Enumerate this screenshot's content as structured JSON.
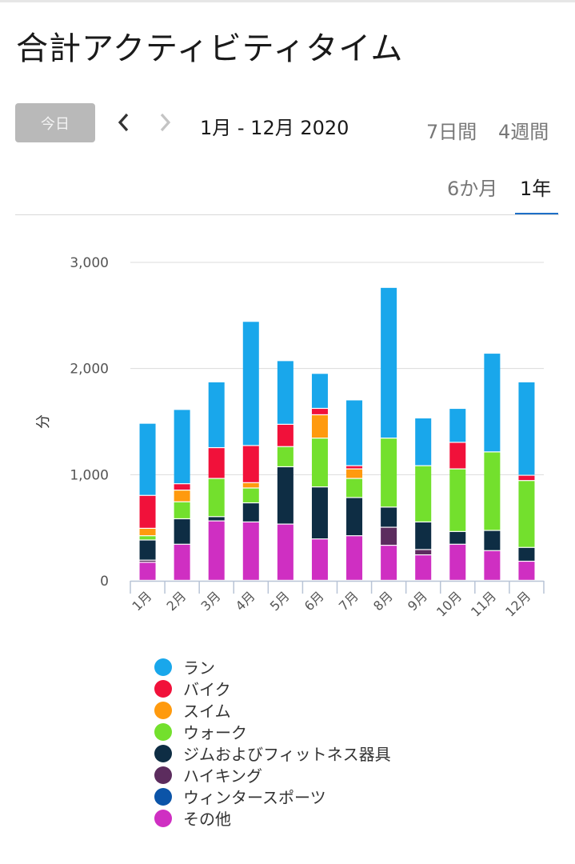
{
  "page": {
    "title": "合計アクティビティタイム"
  },
  "controls": {
    "today_label": "今日",
    "date_range": "1月 - 12月 2020",
    "tabs": [
      {
        "label": "7日間",
        "selected": false
      },
      {
        "label": "4週間",
        "selected": false
      },
      {
        "label": "6か月",
        "selected": false
      },
      {
        "label": "1年",
        "selected": true
      }
    ],
    "accent_color": "#1e6fc7"
  },
  "chart_data": {
    "type": "bar",
    "stacked": true,
    "ylabel": "分",
    "ylim": [
      0,
      3000
    ],
    "yticks": [
      0,
      1000,
      2000,
      3000
    ],
    "ytick_labels": [
      "0",
      "1,000",
      "2,000",
      "3,000"
    ],
    "grid": true,
    "legend_position": "bottom",
    "categories": [
      "1月",
      "2月",
      "3月",
      "4月",
      "5月",
      "6月",
      "7月",
      "8月",
      "9月",
      "10月",
      "11月",
      "12月"
    ],
    "series": [
      {
        "name": "その他",
        "color": "#cf2fc2",
        "values": [
          170,
          340,
          560,
          550,
          530,
          390,
          420,
          330,
          240,
          340,
          280,
          180
        ]
      },
      {
        "name": "ウィンタースポーツ",
        "color": "#0b54a8",
        "values": [
          0,
          0,
          0,
          0,
          0,
          0,
          0,
          0,
          0,
          0,
          0,
          0
        ]
      },
      {
        "name": "ハイキング",
        "color": "#5c2c5e",
        "values": [
          20,
          0,
          0,
          0,
          0,
          0,
          0,
          170,
          50,
          0,
          0,
          0
        ]
      },
      {
        "name": "ジムおよびフィットネス器具",
        "color": "#0e2d44",
        "values": [
          190,
          240,
          40,
          180,
          540,
          490,
          360,
          190,
          260,
          120,
          190,
          130
        ]
      },
      {
        "name": "ウォーク",
        "color": "#73e02d",
        "values": [
          40,
          160,
          360,
          140,
          190,
          460,
          180,
          650,
          530,
          590,
          740,
          630
        ]
      },
      {
        "name": "スイム",
        "color": "#ff9a0e",
        "values": [
          70,
          110,
          0,
          50,
          0,
          220,
          90,
          0,
          0,
          0,
          0,
          0
        ]
      },
      {
        "name": "バイク",
        "color": "#f1113a",
        "values": [
          310,
          60,
          290,
          350,
          210,
          60,
          30,
          0,
          0,
          250,
          0,
          50
        ]
      },
      {
        "name": "ラン",
        "color": "#19a7eb",
        "values": [
          680,
          700,
          620,
          1170,
          600,
          330,
          620,
          1420,
          450,
          320,
          930,
          880
        ]
      }
    ]
  }
}
